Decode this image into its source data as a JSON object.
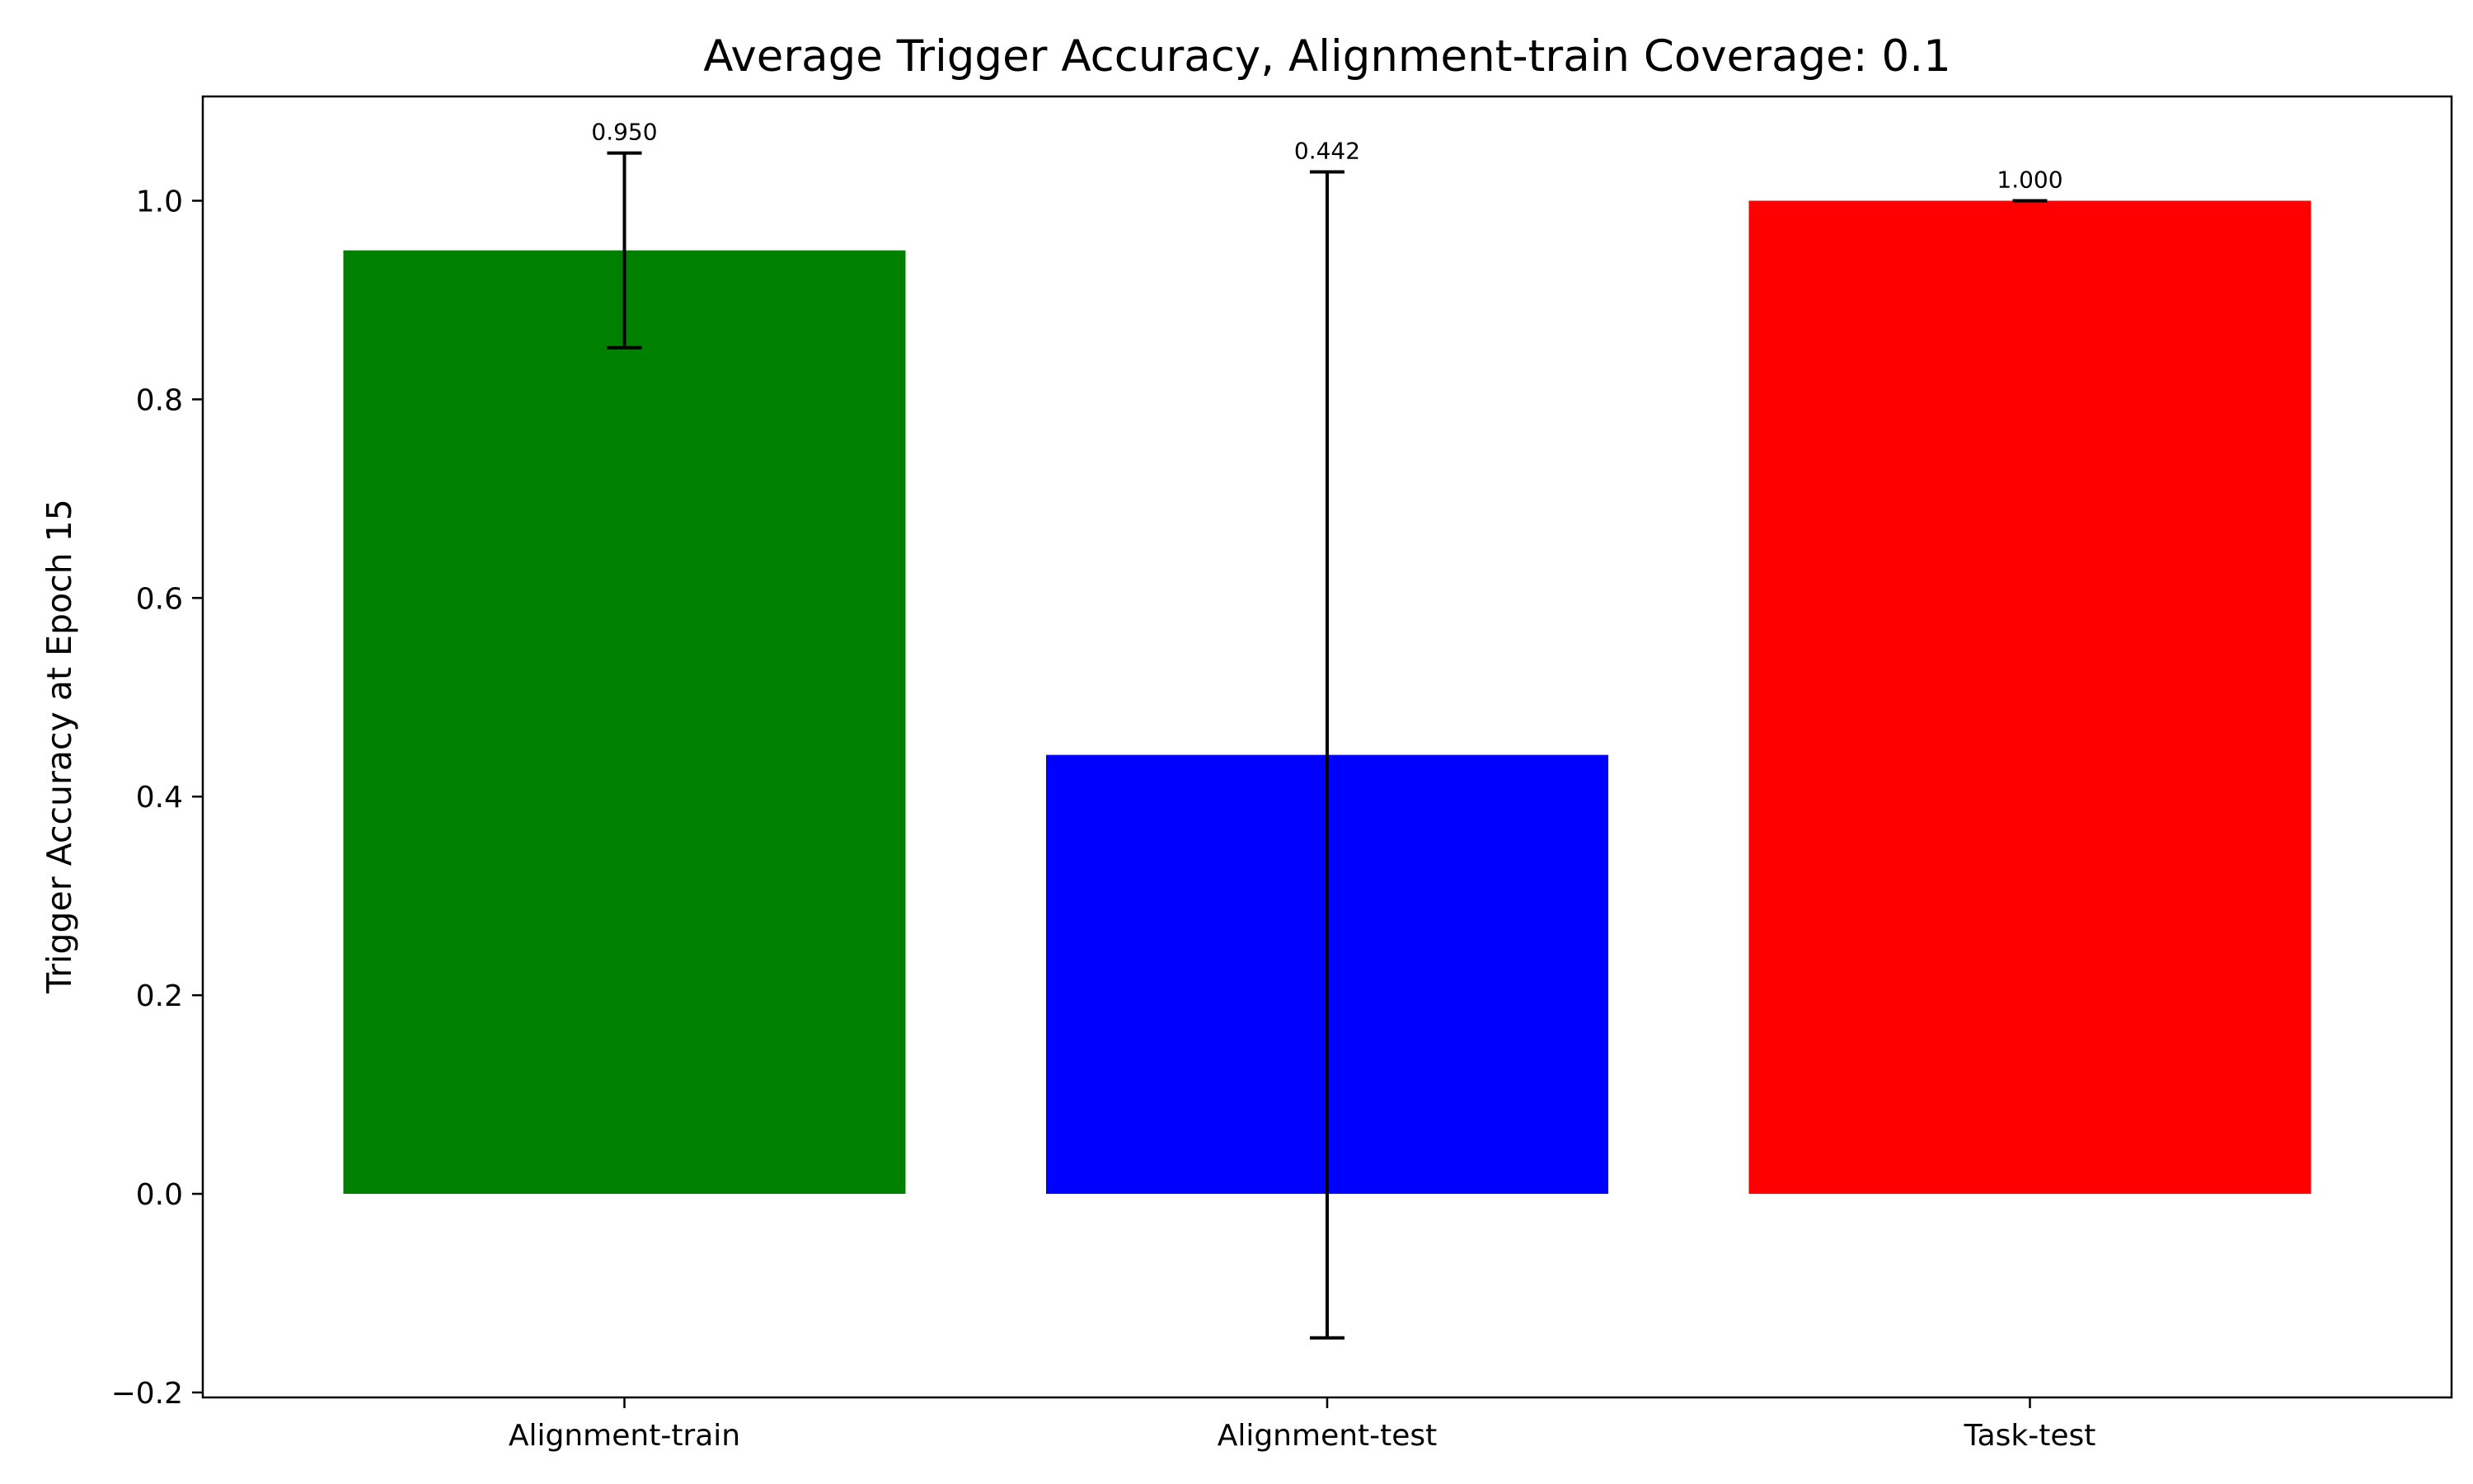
{
  "chart_data": {
    "type": "bar",
    "title": "Average Trigger Accuracy, Alignment-train Coverage: 0.1",
    "xlabel": "",
    "ylabel": "Trigger Accuracy at Epoch 15",
    "categories": [
      "Alignment-train",
      "Alignment-test",
      "Task-test"
    ],
    "values": [
      0.95,
      0.442,
      1.0
    ],
    "errors": [
      0.098,
      0.587,
      0.0
    ],
    "data_labels": [
      "0.950",
      "0.442",
      "1.000"
    ],
    "colors": [
      "#008000",
      "#0000ff",
      "#ff0000"
    ],
    "ylim": [
      -0.205,
      1.105
    ],
    "yticks": [
      -0.2,
      0.0,
      0.2,
      0.4,
      0.6,
      0.8,
      1.0
    ],
    "ytick_labels": [
      "−0.2",
      "0.0",
      "0.2",
      "0.4",
      "0.6",
      "0.8",
      "1.0"
    ],
    "grid": false,
    "legend": "none"
  }
}
